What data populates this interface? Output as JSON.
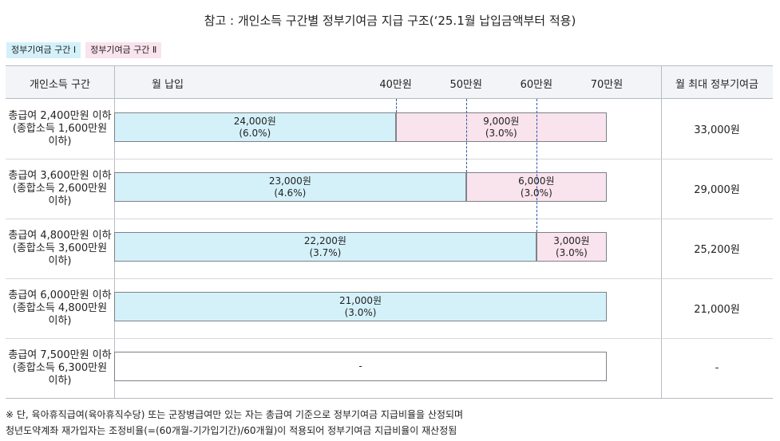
{
  "title": "참고 : 개인소득 구간별 정부기여금 지급 구조(‘25.1월 납입금액부터 적용)",
  "legend": [
    "정부기여금 구간 Ⅰ",
    "정부기여금 구간 Ⅱ"
  ],
  "header": {
    "col_income": "개인소득 구간",
    "col_payment": "월 납입",
    "col_max": "월 최대 정부기여금"
  },
  "chart_data": {
    "type": "bar",
    "orientation": "horizontal",
    "stacked": true,
    "title": "참고 : 개인소득 구간별 정부기여금 지급 구조(‘25.1월 납입금액부터 적용)",
    "xlabel": "월 납입",
    "x_ticks": [
      {
        "value": 40,
        "label": "40만원"
      },
      {
        "value": 50,
        "label": "50만원"
      },
      {
        "value": 60,
        "label": "60만원"
      },
      {
        "value": 70,
        "label": "70만원"
      }
    ],
    "xlim": [
      0,
      70
    ],
    "legend_position": "top-left",
    "colors": {
      "tier1": "#d4f1fa",
      "tier2": "#f9e3ec",
      "none": "#ffffff",
      "border": "#7d8287",
      "dash": "#2a5aa8"
    },
    "rows": [
      {
        "label": [
          "총급여 2,400만원 이하",
          "(종합소득 1,600만원",
          "이하)"
        ],
        "max": "33,000원",
        "segments": [
          {
            "tier": "tier1",
            "from": 0,
            "to": 40,
            "amount": "24,000원",
            "rate": "(6.0%)"
          },
          {
            "tier": "tier2",
            "from": 40,
            "to": 70,
            "amount": "9,000원",
            "rate": "(3.0%)"
          }
        ]
      },
      {
        "label": [
          "총급여 3,600만원 이하",
          "(종합소득 2,600만원",
          "이하)"
        ],
        "max": "29,000원",
        "segments": [
          {
            "tier": "tier1",
            "from": 0,
            "to": 50,
            "amount": "23,000원",
            "rate": "(4.6%)"
          },
          {
            "tier": "tier2",
            "from": 50,
            "to": 70,
            "amount": "6,000원",
            "rate": "(3.0%)"
          }
        ]
      },
      {
        "label": [
          "총급여 4,800만원 이하",
          "(종합소득 3,600만원",
          "이하)"
        ],
        "max": "25,200원",
        "segments": [
          {
            "tier": "tier1",
            "from": 0,
            "to": 60,
            "amount": "22,200원",
            "rate": "(3.7%)"
          },
          {
            "tier": "tier2",
            "from": 60,
            "to": 70,
            "amount": "3,000원",
            "rate": "(3.0%)"
          }
        ]
      },
      {
        "label": [
          "총급여 6,000만원 이하",
          "(종합소득 4,800만원",
          "이하)"
        ],
        "max": "21,000원",
        "segments": [
          {
            "tier": "tier1",
            "from": 0,
            "to": 70,
            "amount": "21,000원",
            "rate": "(3.0%)"
          }
        ]
      },
      {
        "label": [
          "총급여 7,500만원 이하",
          "(종합소득 6,300만원",
          "이하)"
        ],
        "max": "-",
        "segments": [
          {
            "tier": "none",
            "from": 0,
            "to": 70,
            "amount": "-",
            "rate": ""
          }
        ]
      }
    ]
  },
  "notes": [
    "※ 단, 육아휴직급여(육아휴직수당) 또는 군장병급여만 있는 자는 총급여 기준으로 정부기여금 지급비율을 산정되며",
    "청년도약계좌 재가입자는 조정비율(=(60개월-기가입기간)/60개월)이 적용되어 정부기여금 지급비율이 재산정됨"
  ]
}
